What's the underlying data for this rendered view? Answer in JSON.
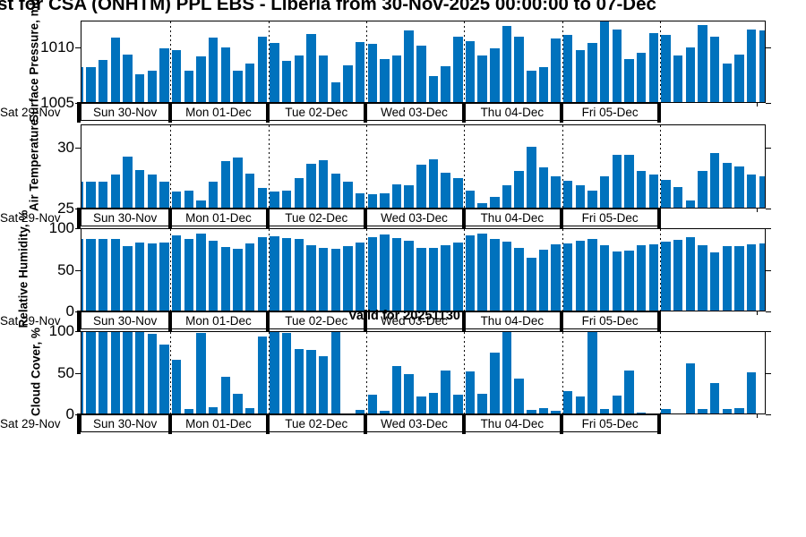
{
  "title": "st for CSA (ONHTM) PPL EBS  - Liberia from 30-Nov-2025 00:00:00 to 07-Dec",
  "annotation": {
    "text": "Valid for 20251130"
  },
  "colors": {
    "bar_fill": "#0072BD",
    "axis": "#000000",
    "background": "#FFFFFF"
  },
  "x_axis": {
    "outside_left_label": "Sat 29-Nov",
    "day_labels": [
      "Sun 30-Nov",
      "Mon 01-Dec",
      "Tue 02-Dec",
      "Wed 03-Dec",
      "Thu 04-Dec",
      "Fri 05-Dec"
    ],
    "interval_hours": 3
  },
  "chart_data": [
    {
      "type": "bar",
      "ylabel": "Surface Pressure, mb",
      "yticks": [
        1005,
        1010
      ],
      "ylim": [
        1005,
        1012.4
      ],
      "values": [
        1008.1,
        1008.1,
        1008.8,
        1010.8,
        1009.3,
        1007.5,
        1007.8,
        1009.8,
        1009.7,
        1007.8,
        1009.1,
        1010.8,
        1009.9,
        1007.8,
        1008.5,
        1010.9,
        1010.3,
        1008.7,
        1009.2,
        1011.1,
        1009.2,
        1006.8,
        1008.3,
        1010.4,
        1010.2,
        1008.9,
        1009.2,
        1011.4,
        1010.1,
        1007.3,
        1008.2,
        1010.9,
        1010.5,
        1009.2,
        1009.8,
        1011.8,
        1010.9,
        1007.8,
        1008.1,
        1010.7,
        1011.0,
        1009.7,
        1010.3,
        1012.3,
        1011.5,
        1008.9,
        1009.4,
        1011.2,
        1011.0,
        1009.2,
        1009.9,
        1011.9,
        1010.9,
        1008.5,
        1009.3,
        1011.5,
        1011.4
      ]
    },
    {
      "type": "bar",
      "ylabel": "Air Temperature",
      "yticks": [
        25,
        30
      ],
      "ylim": [
        25,
        31.9
      ],
      "values": [
        27.1,
        27.1,
        27.1,
        27.7,
        29.2,
        28.1,
        27.7,
        27.1,
        26.3,
        26.4,
        25.6,
        27.1,
        28.8,
        29.1,
        27.8,
        26.6,
        26.3,
        26.4,
        27.4,
        28.6,
        28.9,
        27.8,
        27.1,
        26.2,
        26.1,
        26.2,
        26.9,
        26.8,
        28.5,
        29.0,
        27.9,
        27.4,
        26.4,
        25.4,
        25.9,
        26.8,
        28.0,
        30.0,
        28.3,
        27.6,
        27.2,
        26.8,
        26.4,
        27.6,
        29.3,
        29.3,
        28.0,
        27.7,
        27.3,
        26.7,
        25.6,
        28.0,
        29.5,
        28.7,
        28.4,
        27.7,
        27.6
      ]
    },
    {
      "type": "bar",
      "ylabel": "Relative Humidity, %",
      "yticks": [
        0,
        50,
        100
      ],
      "ylim": [
        0,
        100
      ],
      "values": [
        86,
        86,
        86,
        86,
        77,
        82,
        81,
        82,
        90,
        86,
        93,
        84,
        76,
        74,
        81,
        88,
        89,
        87,
        86,
        79,
        75,
        74,
        77,
        82,
        88,
        91,
        87,
        84,
        75,
        75,
        79,
        82,
        90,
        92,
        86,
        83,
        75,
        63,
        73,
        80,
        81,
        84,
        86,
        79,
        71,
        72,
        79,
        80,
        83,
        85,
        88,
        79,
        70,
        77,
        77,
        80,
        81
      ]
    },
    {
      "type": "bar",
      "ylabel": "Cloud Cover, %",
      "yticks": [
        0,
        50,
        100
      ],
      "ylim": [
        0,
        100
      ],
      "values": [
        100,
        100,
        100,
        100,
        100,
        100,
        96,
        83,
        64,
        5,
        97,
        8,
        44,
        24,
        7,
        92,
        100,
        97,
        77,
        76,
        69,
        100,
        0,
        4,
        23,
        3,
        57,
        47,
        20,
        25,
        52,
        23,
        51,
        24,
        73,
        100,
        42,
        4,
        6,
        3,
        27,
        20,
        100,
        5,
        21,
        52,
        1,
        0,
        5,
        0,
        60,
        5,
        37,
        5,
        6,
        50,
        0
      ]
    }
  ]
}
